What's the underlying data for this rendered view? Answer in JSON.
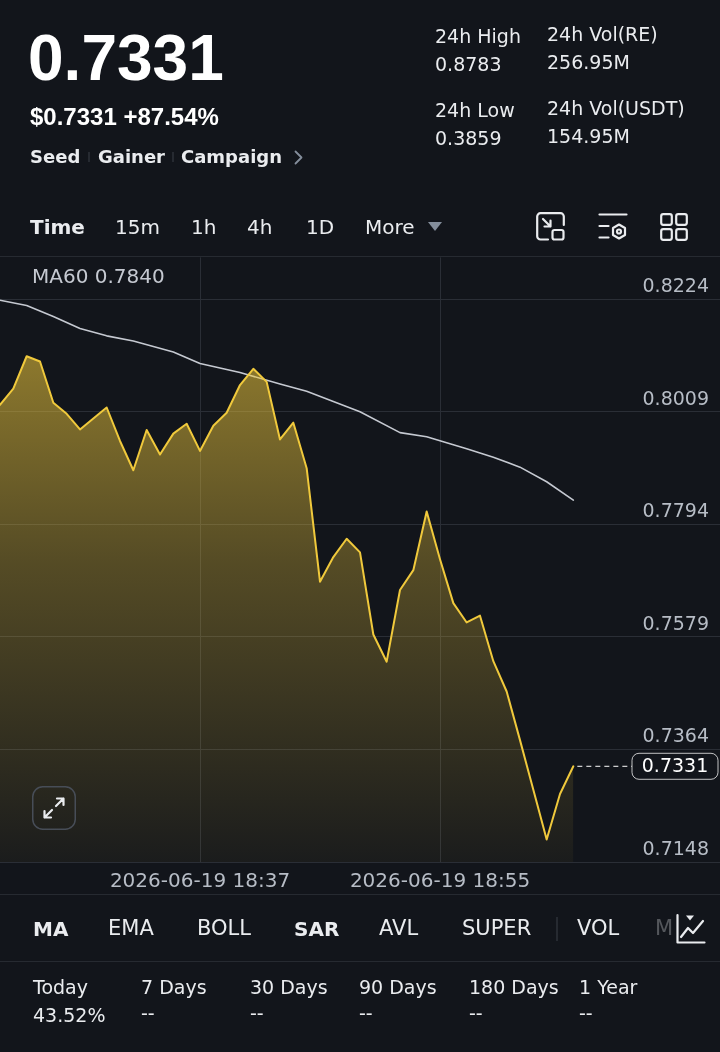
{
  "chart_data": {
    "type": "area",
    "title": "0.7331",
    "subtitle": "$0.7331 +87.54%",
    "x": [
      "2026-06-19T18:22",
      "2026-06-19T18:23",
      "2026-06-19T18:24",
      "2026-06-19T18:25",
      "2026-06-19T18:26",
      "2026-06-19T18:27",
      "2026-06-19T18:28",
      "2026-06-19T18:29",
      "2026-06-19T18:30",
      "2026-06-19T18:31",
      "2026-06-19T18:32",
      "2026-06-19T18:33",
      "2026-06-19T18:34",
      "2026-06-19T18:35",
      "2026-06-19T18:36",
      "2026-06-19T18:37",
      "2026-06-19T18:38",
      "2026-06-19T18:39",
      "2026-06-19T18:40",
      "2026-06-19T18:41",
      "2026-06-19T18:42",
      "2026-06-19T18:43",
      "2026-06-19T18:44",
      "2026-06-19T18:45",
      "2026-06-19T18:46",
      "2026-06-19T18:47",
      "2026-06-19T18:48",
      "2026-06-19T18:49",
      "2026-06-19T18:50",
      "2026-06-19T18:51",
      "2026-06-19T18:52",
      "2026-06-19T18:53",
      "2026-06-19T18:54",
      "2026-06-19T18:55",
      "2026-06-19T18:56",
      "2026-06-19T18:57",
      "2026-06-19T18:58",
      "2026-06-19T18:59",
      "2026-06-19T19:00",
      "2026-06-19T19:01",
      "2026-06-19T19:02",
      "2026-06-19T19:03",
      "2026-06-19T19:04",
      "2026-06-19T19:05"
    ],
    "series": [
      {
        "color": "#f0c93c",
        "values": [
          0.8022,
          0.8053,
          0.8115,
          0.8105,
          0.8026,
          0.8005,
          0.7975,
          0.7996,
          0.8017,
          0.7953,
          0.7897,
          0.7974,
          0.7927,
          0.7967,
          0.7986,
          0.7934,
          0.7982,
          0.8007,
          0.806,
          0.8091,
          0.8066,
          0.7956,
          0.7988,
          0.7901,
          0.7684,
          0.7731,
          0.7766,
          0.774,
          0.7583,
          0.7531,
          0.7668,
          0.7706,
          0.7818,
          0.7727,
          0.7643,
          0.7606,
          0.7619,
          0.7532,
          0.7474,
          0.7381,
          0.7286,
          0.7191,
          0.7278,
          0.7331
        ]
      },
      {
        "type": "line",
        "name": "MA60 0.7840",
        "color": "#c5c9d1",
        "x": [
          "2026-06-19T18:22",
          "2026-06-19T18:24",
          "2026-06-19T18:26",
          "2026-06-19T18:28",
          "2026-06-19T18:30",
          "2026-06-19T18:32",
          "2026-06-19T18:35",
          "2026-06-19T18:37",
          "2026-06-19T18:40",
          "2026-06-19T18:43",
          "2026-06-19T18:45",
          "2026-06-19T18:49",
          "2026-06-19T18:52",
          "2026-06-19T18:54",
          "2026-06-19T18:57",
          "2026-06-19T18:59",
          "2026-06-19T19:01",
          "2026-06-19T19:03",
          "2026-06-19T19:05"
        ],
        "values": [
          0.8222,
          0.8212,
          0.8191,
          0.8168,
          0.8154,
          0.8144,
          0.8123,
          0.8101,
          0.8084,
          0.8062,
          0.8048,
          0.8009,
          0.7969,
          0.7961,
          0.7938,
          0.7922,
          0.7903,
          0.7875,
          0.784
        ]
      }
    ],
    "xlim": [
      "2026-06-19T18:22",
      "2026-06-19T19:16"
    ],
    "xticks": [
      {
        "value": "2026-06-19T18:37",
        "label": "2026-06-19 18:37"
      },
      {
        "value": "2026-06-19T18:55",
        "label": "2026-06-19 18:55"
      }
    ],
    "ylim": [
      0.7148,
      0.8304
    ],
    "yticks": [
      0.7148,
      0.7364,
      0.7579,
      0.7794,
      0.8009,
      0.8224
    ],
    "grid": true,
    "legend": "top left",
    "marker": "none",
    "ref_lines": [
      {
        "axis": "y",
        "value": 0.7331,
        "label": "0.7331",
        "line_style": "dashed",
        "color": "#ffffff"
      }
    ],
    "annotations": [
      "24h High",
      "0.8783",
      "24h Low",
      "0.3859",
      "24h Vol(RE)",
      "256.95M",
      "24h Vol(USDT)",
      "154.95M",
      "Seed",
      "Gainer",
      "Campaign",
      "Time",
      "15m",
      "1h",
      "4h",
      "1D",
      "More",
      "MA",
      "EMA",
      "BOLL",
      "SAR",
      "AVL",
      "SUPER",
      "VOL",
      "M",
      "Today",
      "43.52%",
      "7 Days",
      "--",
      "30 Days",
      "--",
      "90 Days",
      "--",
      "180 Days",
      "--",
      "1 Year",
      "--"
    ]
  }
}
